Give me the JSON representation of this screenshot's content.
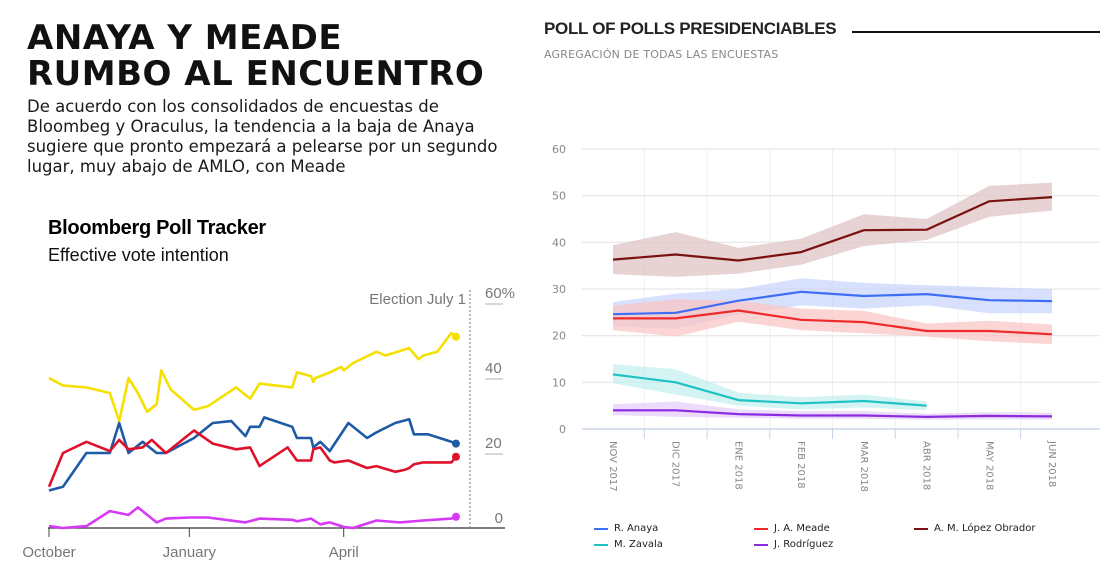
{
  "article": {
    "headline_line1": "ANAYA Y MEADE",
    "headline_line2": "RUMBO AL ENCUENTRO",
    "deck": "De acuerdo con los consolidados de encuestas de Bloombeg y Oraculus, la tendencia a la baja de Anaya sugiere que pronto empezará a pelearse por un segundo lugar, muy abajo de AMLO, con Meade"
  },
  "chart_data": [
    {
      "type": "line",
      "title": "Bloomberg Poll Tracker",
      "subtitle": "Effective vote intention",
      "xlabel": "",
      "ylabel": "",
      "x_tick_labels": [
        "October",
        "January",
        "April"
      ],
      "y_tick_labels": [
        "60%",
        "40",
        "20",
        "0"
      ],
      "y_ticks": [
        60,
        40,
        20,
        0
      ],
      "ylim": [
        0,
        60
      ],
      "x_domain_months": [
        0,
        9
      ],
      "x_ticks_months": [
        0,
        3,
        6.3
      ],
      "annotation": {
        "label": "Election July 1",
        "x_month": 9
      },
      "grid": false,
      "legend": "none",
      "series": [
        {
          "name": "López Obrador",
          "color": "#f5e000",
          "x": [
            0,
            0.3,
            0.8,
            1.3,
            1.5,
            1.7,
            1.9,
            2.1,
            2.3,
            2.4,
            2.6,
            3.1,
            3.4,
            4.0,
            4.3,
            4.5,
            5.2,
            5.3,
            5.6,
            5.65,
            5.7,
            6.0,
            6.25,
            6.3,
            6.5,
            7.0,
            7.2,
            7.7,
            7.9,
            8.0,
            8.3,
            8.6,
            8.7
          ],
          "y": [
            40,
            38,
            37.5,
            36,
            28.5,
            40,
            36,
            31,
            33,
            42,
            37,
            31.5,
            32.5,
            37.5,
            34.5,
            38.5,
            37.5,
            41.5,
            40.5,
            39,
            40,
            41.5,
            43,
            42,
            44,
            47,
            46,
            48,
            45,
            46,
            47,
            52,
            51
          ]
        },
        {
          "name": "Anaya",
          "color": "#1f5aa6",
          "x": [
            0,
            0.3,
            0.8,
            1.3,
            1.5,
            1.7,
            2.0,
            2.3,
            2.5,
            3.1,
            3.5,
            3.9,
            4.2,
            4.3,
            4.5,
            4.6,
            5.2,
            5.3,
            5.6,
            5.65,
            5.8,
            6.0,
            6.4,
            6.8,
            7.0,
            7.4,
            7.7,
            7.8,
            8.1,
            8.6,
            8.7
          ],
          "y": [
            10,
            11,
            20,
            20,
            28,
            20,
            23,
            20,
            20,
            24,
            28,
            28.5,
            24.5,
            27,
            27,
            29.5,
            27,
            24,
            24,
            21.5,
            23,
            20.5,
            28,
            24,
            25.5,
            28,
            29,
            25,
            25,
            23,
            22.5
          ]
        },
        {
          "name": "Meade",
          "color": "#e0112b",
          "x": [
            0,
            0.3,
            0.8,
            1.3,
            1.5,
            1.7,
            2.0,
            2.2,
            2.5,
            3.1,
            3.5,
            4.0,
            4.3,
            4.5,
            5.1,
            5.3,
            5.6,
            5.65,
            5.8,
            6.0,
            6.1,
            6.4,
            6.8,
            7.0,
            7.4,
            7.6,
            7.7,
            7.8,
            8.0,
            8.6,
            8.7
          ],
          "y": [
            11,
            20,
            23,
            20.5,
            23.5,
            21,
            21.5,
            23.5,
            20,
            26,
            22.5,
            21,
            21.5,
            16.5,
            21.5,
            18,
            18,
            21,
            21.5,
            18,
            17.5,
            18,
            16,
            16.5,
            15,
            15.5,
            16,
            17,
            17.5,
            17.5,
            19
          ]
        },
        {
          "name": "Rodríguez",
          "color": "#d63af5",
          "x": [
            0,
            0.3,
            0.8,
            1.3,
            1.7,
            1.9,
            2.3,
            2.5,
            3.0,
            3.4,
            4.2,
            4.5,
            5.2,
            5.3,
            5.6,
            5.8,
            6.0,
            6.3,
            6.5,
            7.0,
            7.5,
            8.0,
            8.6,
            8.7
          ],
          "y": [
            0.5,
            0,
            0.5,
            4.5,
            3.5,
            5.5,
            1.5,
            2.5,
            2.8,
            2.8,
            1.5,
            2.5,
            2.2,
            1.8,
            2.5,
            1,
            1.5,
            0.3,
            0,
            2,
            1.5,
            2,
            2.5,
            3
          ]
        }
      ]
    },
    {
      "type": "line",
      "title": "POLL OF POLLS PRESIDENCIABLES",
      "subtitle": "AGREGACIÓN DE TODAS LAS ENCUESTAS",
      "xlabel": "",
      "ylabel": "",
      "categories": [
        "NOV 2017",
        "DIC 2017",
        "ENE 2018",
        "FEB 2018",
        "MAR 2018",
        "ABR 2018",
        "MAY 2018",
        "JUN 2018"
      ],
      "y_ticks": [
        0,
        10,
        20,
        30,
        40,
        50,
        60
      ],
      "ylim": [
        0,
        60
      ],
      "grid": true,
      "legend": "bottom",
      "series": [
        {
          "name": "R. Anaya",
          "color": "#3d6ef5",
          "band_color": "#c9d6fb",
          "values": [
            24.6,
            24.9,
            27.5,
            29.4,
            28.5,
            28.9,
            27.6,
            27.4
          ],
          "lower": [
            22.0,
            21.5,
            24.5,
            26.5,
            25.8,
            26.5,
            24.8,
            24.8
          ],
          "upper": [
            27.2,
            29.0,
            30.0,
            32.3,
            31.3,
            30.8,
            30.4,
            30.0
          ]
        },
        {
          "name": "J. A. Meade",
          "color": "#ee2a2a",
          "band_color": "#f9c6c6",
          "values": [
            23.7,
            23.7,
            25.4,
            23.4,
            22.9,
            21.0,
            21.0,
            20.3
          ],
          "lower": [
            21.2,
            19.8,
            23.0,
            21.2,
            20.5,
            19.8,
            18.8,
            18.2
          ],
          "upper": [
            26.4,
            27.8,
            27.5,
            25.8,
            25.3,
            22.6,
            23.2,
            22.4
          ]
        },
        {
          "name": "A. M. López Obrador",
          "color": "#7a1212",
          "band_color": "#dfc4c4",
          "values": [
            36.3,
            37.4,
            36.1,
            37.9,
            42.6,
            42.7,
            48.8,
            49.7
          ],
          "lower": [
            33.2,
            32.6,
            33.3,
            35.2,
            39.2,
            40.5,
            45.5,
            46.8
          ],
          "upper": [
            39.4,
            42.2,
            38.8,
            40.8,
            46.0,
            45.0,
            52.1,
            52.8
          ]
        },
        {
          "name": "M. Zavala",
          "color": "#1ec2c2",
          "band_color": "#c5f0f0",
          "values": [
            11.7,
            10.0,
            6.2,
            5.5,
            6.0,
            5.0
          ],
          "lower": [
            9.8,
            7.4,
            5.0,
            4.2,
            4.6,
            4.0
          ],
          "upper": [
            13.9,
            12.8,
            7.8,
            6.8,
            7.4,
            5.9
          ]
        },
        {
          "name": "J. Rodríguez",
          "color": "#8a2be2",
          "band_color": "#e6cff8",
          "values": [
            4.0,
            4.0,
            3.2,
            2.9,
            2.9,
            2.6,
            2.8,
            2.7
          ],
          "lower": [
            3.0,
            2.6,
            2.4,
            2.2,
            2.2,
            2.0,
            2.1,
            2.0
          ],
          "upper": [
            5.3,
            5.9,
            4.2,
            3.8,
            3.8,
            3.3,
            3.6,
            3.5
          ]
        }
      ]
    }
  ]
}
